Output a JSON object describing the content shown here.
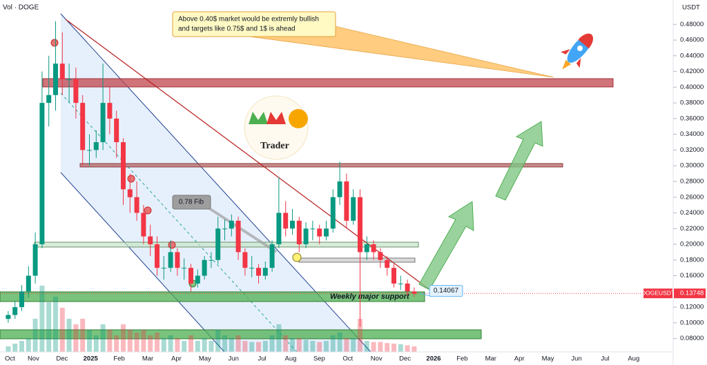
{
  "chart_data": {
    "type": "candlestick",
    "symbol_label": "Vol · DOGE",
    "currency_label": "USDT",
    "ylim": [
      0.063,
      0.511
    ],
    "yticks": [
      {
        "value": 0.48,
        "label": "0.48000"
      },
      {
        "value": 0.46,
        "label": "0.46000"
      },
      {
        "value": 0.44,
        "label": "0.44000"
      },
      {
        "value": 0.42,
        "label": "0.42000"
      },
      {
        "value": 0.4,
        "label": "0.40000"
      },
      {
        "value": 0.38,
        "label": "0.38000"
      },
      {
        "value": 0.36,
        "label": "0.36000"
      },
      {
        "value": 0.34,
        "label": "0.34000"
      },
      {
        "value": 0.32,
        "label": "0.32000"
      },
      {
        "value": 0.3,
        "label": "0.30000"
      },
      {
        "value": 0.28,
        "label": "0.28000"
      },
      {
        "value": 0.26,
        "label": "0.26000"
      },
      {
        "value": 0.24,
        "label": "0.24000"
      },
      {
        "value": 0.22,
        "label": "0.22000"
      },
      {
        "value": 0.2,
        "label": "0.20000"
      },
      {
        "value": 0.18,
        "label": "0.18000"
      },
      {
        "value": 0.16,
        "label": "0.16000"
      },
      {
        "value": 0.14,
        "label": "0.14000"
      },
      {
        "value": 0.12,
        "label": "0.12000"
      },
      {
        "value": 0.1,
        "label": "0.10000"
      },
      {
        "value": 0.08,
        "label": "0.08000"
      }
    ],
    "grid": false,
    "x_labels": [
      "Oct",
      "Nov",
      "Dec",
      "2025",
      "Feb",
      "Mar",
      "Apr",
      "May",
      "Jun",
      "Jul",
      "Aug",
      "Sep",
      "Oct",
      "Nov",
      "Dec",
      "2026",
      "Feb",
      "Mar",
      "Apr",
      "May",
      "Jun",
      "Jul",
      "Aug"
    ],
    "up_color": "#089981",
    "down_color": "#f23645",
    "ohlc": [
      [
        0.105,
        0.115,
        0.1,
        0.11
      ],
      [
        0.11,
        0.128,
        0.105,
        0.12
      ],
      [
        0.12,
        0.148,
        0.115,
        0.14
      ],
      [
        0.14,
        0.172,
        0.132,
        0.16
      ],
      [
        0.16,
        0.215,
        0.15,
        0.2
      ],
      [
        0.2,
        0.42,
        0.195,
        0.38
      ],
      [
        0.38,
        0.44,
        0.35,
        0.39
      ],
      [
        0.39,
        0.484,
        0.37,
        0.43
      ],
      [
        0.43,
        0.47,
        0.39,
        0.41
      ],
      [
        0.41,
        0.43,
        0.38,
        0.41
      ],
      [
        0.41,
        0.425,
        0.36,
        0.38
      ],
      [
        0.38,
        0.39,
        0.3,
        0.32
      ],
      [
        0.32,
        0.34,
        0.3,
        0.32
      ],
      [
        0.32,
        0.345,
        0.31,
        0.33
      ],
      [
        0.33,
        0.43,
        0.32,
        0.38
      ],
      [
        0.38,
        0.4,
        0.34,
        0.36
      ],
      [
        0.36,
        0.37,
        0.31,
        0.33
      ],
      [
        0.33,
        0.335,
        0.25,
        0.27
      ],
      [
        0.27,
        0.29,
        0.24,
        0.26
      ],
      [
        0.26,
        0.28,
        0.23,
        0.24
      ],
      [
        0.24,
        0.25,
        0.2,
        0.21
      ],
      [
        0.21,
        0.225,
        0.185,
        0.2
      ],
      [
        0.2,
        0.21,
        0.16,
        0.17
      ],
      [
        0.17,
        0.185,
        0.155,
        0.17
      ],
      [
        0.17,
        0.205,
        0.165,
        0.19
      ],
      [
        0.19,
        0.195,
        0.16,
        0.17
      ],
      [
        0.17,
        0.182,
        0.155,
        0.17
      ],
      [
        0.17,
        0.175,
        0.14,
        0.15
      ],
      [
        0.15,
        0.168,
        0.145,
        0.16
      ],
      [
        0.16,
        0.185,
        0.155,
        0.18
      ],
      [
        0.18,
        0.19,
        0.17,
        0.18
      ],
      [
        0.18,
        0.235,
        0.175,
        0.22
      ],
      [
        0.22,
        0.232,
        0.205,
        0.22
      ],
      [
        0.22,
        0.238,
        0.21,
        0.23
      ],
      [
        0.23,
        0.235,
        0.18,
        0.19
      ],
      [
        0.19,
        0.195,
        0.16,
        0.17
      ],
      [
        0.17,
        0.185,
        0.158,
        0.17
      ],
      [
        0.17,
        0.175,
        0.15,
        0.16
      ],
      [
        0.16,
        0.178,
        0.155,
        0.17
      ],
      [
        0.17,
        0.205,
        0.165,
        0.2
      ],
      [
        0.2,
        0.285,
        0.195,
        0.24
      ],
      [
        0.24,
        0.255,
        0.21,
        0.22
      ],
      [
        0.22,
        0.245,
        0.212,
        0.23
      ],
      [
        0.23,
        0.235,
        0.19,
        0.2
      ],
      [
        0.2,
        0.228,
        0.195,
        0.22
      ],
      [
        0.22,
        0.23,
        0.205,
        0.22
      ],
      [
        0.22,
        0.225,
        0.2,
        0.21
      ],
      [
        0.21,
        0.23,
        0.205,
        0.22
      ],
      [
        0.22,
        0.27,
        0.215,
        0.26
      ],
      [
        0.26,
        0.305,
        0.25,
        0.28
      ],
      [
        0.28,
        0.29,
        0.22,
        0.23
      ],
      [
        0.23,
        0.27,
        0.225,
        0.26
      ],
      [
        0.26,
        0.27,
        0.095,
        0.19
      ],
      [
        0.19,
        0.21,
        0.18,
        0.2
      ],
      [
        0.2,
        0.205,
        0.18,
        0.19
      ],
      [
        0.19,
        0.195,
        0.17,
        0.18
      ],
      [
        0.18,
        0.185,
        0.16,
        0.17
      ],
      [
        0.17,
        0.175,
        0.145,
        0.15
      ],
      [
        0.15,
        0.16,
        0.142,
        0.15
      ],
      [
        0.15,
        0.155,
        0.135,
        0.14
      ],
      [
        0.14,
        0.145,
        0.133,
        0.137
      ]
    ],
    "volumes": [
      1,
      1.5,
      2,
      2.5,
      6,
      12,
      9,
      10,
      8,
      6,
      5,
      6,
      4,
      3,
      5,
      4,
      3,
      5,
      4,
      3.5,
      4,
      3,
      3.5,
      2.5,
      3,
      2.5,
      2,
      3,
      2,
      2.5,
      2,
      4,
      3,
      2.5,
      3,
      2,
      1.8,
      1.8,
      2,
      3,
      5,
      3,
      2.5,
      2.5,
      2.2,
      2,
      1.8,
      2,
      3,
      3.5,
      2.5,
      2.5,
      6,
      2,
      1.8,
      1.8,
      1.6,
      1.5,
      1.4,
      1.2,
      1
    ],
    "last_price": 0.13748,
    "last_price_symbol": "DOGEUSDT",
    "callout_price": 0.14067,
    "annotation_lines": [
      "Above 0.40$ market would be extremly bullish",
      "and targets like 0.75$ and 1$ is ahead"
    ],
    "fib_label": "0.78 Fib",
    "support_label": "Weekly major support",
    "logo_text": "Trader"
  }
}
